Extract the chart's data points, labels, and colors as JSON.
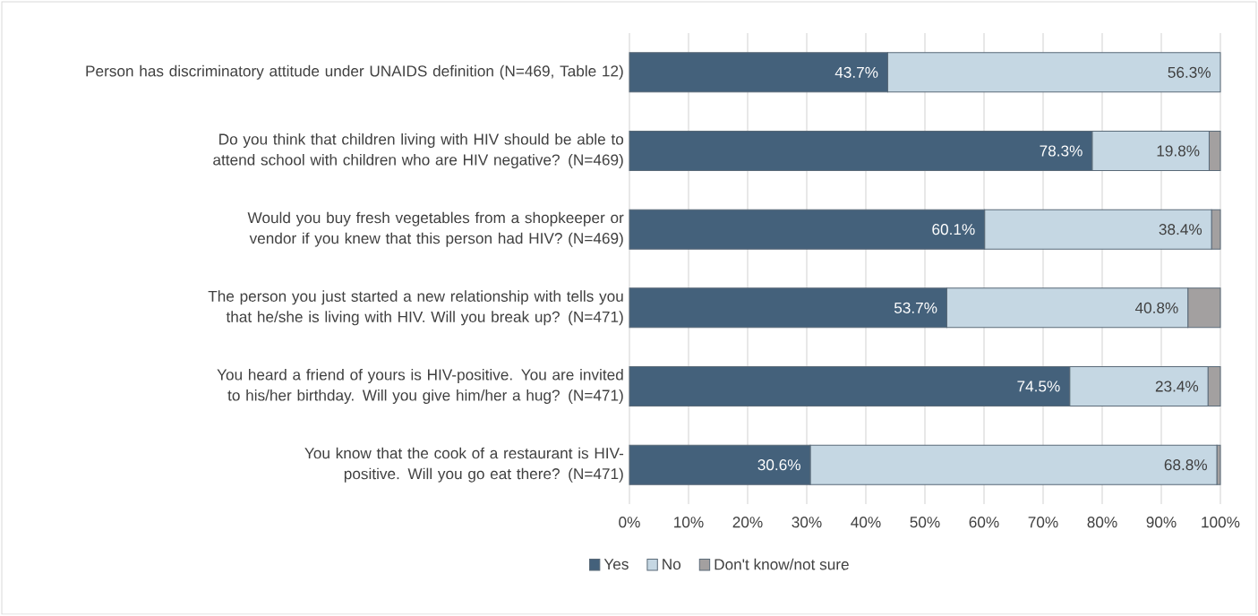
{
  "chart_data": {
    "type": "bar",
    "orientation": "horizontal",
    "stacked": true,
    "categories": [
      "Person has discriminatory attitude under UNAIDS definition (N=469, Table 12)",
      "Do you think that children living with HIV should be able to attend school with children who are HIV negative? (N=469)",
      "Would you buy fresh vegetables from a shopkeeper or vendor if you knew that this person had HIV? (N=469)",
      "The person you just started a new relationship with tells you that he/she is living with HIV. Will you break up? (N=471)",
      "You heard a friend of yours is HIV-positive. You are invited to his/her birthday. Will you give him/her a hug? (N=471)",
      "You know that the cook of a restaurant is HIV-positive. Will you go eat there? (N=471)"
    ],
    "series": [
      {
        "name": "Yes",
        "color": "#44617b",
        "values": [
          43.7,
          78.3,
          60.1,
          53.7,
          74.5,
          30.6
        ],
        "value_labels": [
          "43.7%",
          "78.3%",
          "60.1%",
          "53.7%",
          "74.5%",
          "30.6%"
        ]
      },
      {
        "name": "No",
        "color": "#c5d7e3",
        "values": [
          56.3,
          19.8,
          38.4,
          40.8,
          23.4,
          68.8
        ],
        "value_labels": [
          "56.3%",
          "19.8%",
          "38.4%",
          "40.8%",
          "23.4%",
          "68.8%"
        ]
      },
      {
        "name": "Don't know/not sure",
        "color": "#a3a0a0",
        "values": [
          0,
          1.9,
          1.5,
          5.5,
          2.1,
          0.6
        ]
      }
    ],
    "xlim": [
      0,
      100
    ],
    "xticks": [
      {
        "value": 0,
        "label": "0%"
      },
      {
        "value": 10,
        "label": "10%"
      },
      {
        "value": 20,
        "label": "20%"
      },
      {
        "value": 30,
        "label": "30%"
      },
      {
        "value": 40,
        "label": "40%"
      },
      {
        "value": 50,
        "label": "50%"
      },
      {
        "value": 60,
        "label": "60%"
      },
      {
        "value": 70,
        "label": "70%"
      },
      {
        "value": 80,
        "label": "80%"
      },
      {
        "value": 90,
        "label": "90%"
      },
      {
        "value": 100,
        "label": "100%"
      }
    ],
    "grid": "x",
    "legend": "bottom"
  }
}
